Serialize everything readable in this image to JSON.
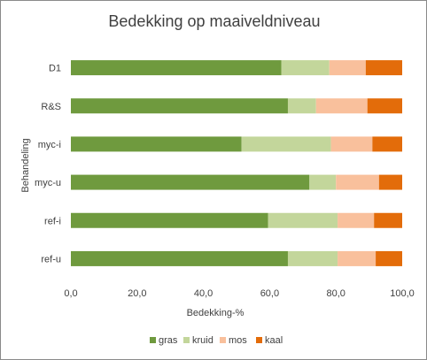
{
  "chart_data": {
    "type": "bar",
    "orientation": "horizontal",
    "stacked": true,
    "title": "Bedekking op maaiveldniveau",
    "xlabel": "Bedekking-%",
    "ylabel": "Behandeling",
    "xlim": [
      0,
      100
    ],
    "x_ticks": [
      "0,0",
      "20,0",
      "40,0",
      "60,0",
      "80,0",
      "100,0"
    ],
    "categories": [
      "D1",
      "R&S",
      "myc-i",
      "myc-u",
      "ref-i",
      "ref-u"
    ],
    "series": [
      {
        "name": "gras",
        "color": "#6f9a3e",
        "values": [
          63.5,
          65.5,
          51.5,
          72.0,
          59.5,
          65.5
        ]
      },
      {
        "name": "kruid",
        "color": "#c3d69b",
        "values": [
          14.5,
          8.5,
          27.0,
          8.0,
          21.0,
          15.0
        ]
      },
      {
        "name": "mos",
        "color": "#f9c09c",
        "values": [
          11.0,
          15.5,
          12.5,
          13.0,
          11.0,
          11.5
        ]
      },
      {
        "name": "kaal",
        "color": "#e36c0a",
        "values": [
          11.0,
          10.5,
          9.0,
          7.0,
          8.5,
          8.0
        ]
      }
    ],
    "legend_position": "bottom",
    "grid": false
  }
}
